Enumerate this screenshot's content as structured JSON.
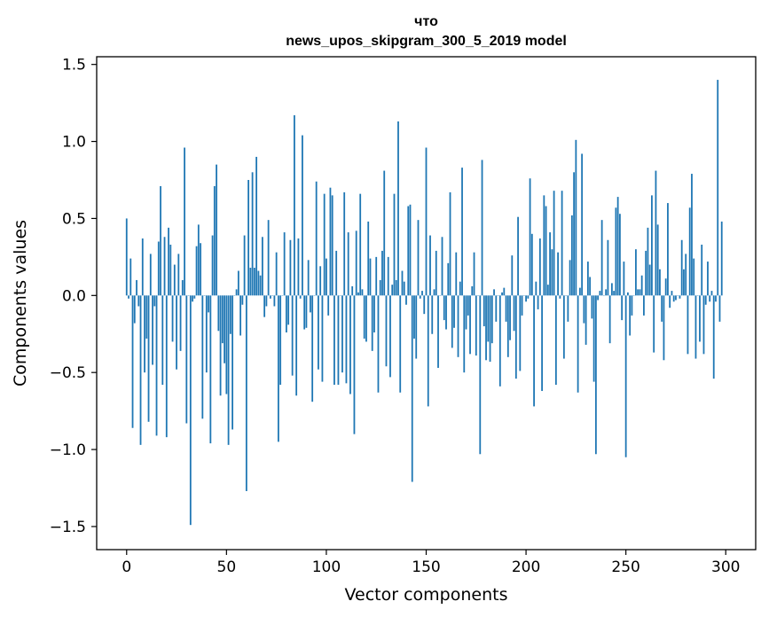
{
  "chart_data": {
    "type": "bar",
    "title_lines": [
      "что",
      "news_upos_skipgram_300_5_2019 model"
    ],
    "xlabel": "Vector components",
    "ylabel": "Components values",
    "xlim": [
      -15,
      315
    ],
    "ylim": [
      -1.65,
      1.55
    ],
    "xticks": [
      0,
      50,
      100,
      150,
      200,
      250,
      300
    ],
    "xtick_labels": [
      "0",
      "50",
      "100",
      "150",
      "200",
      "250",
      "300"
    ],
    "yticks": [
      -1.5,
      -1.0,
      -0.5,
      0.0,
      0.5,
      1.0,
      1.5
    ],
    "ytick_labels": [
      "−1.5",
      "−1.0",
      "−0.5",
      "0.0",
      "0.5",
      "1.0",
      "1.5"
    ],
    "bar_color": "#1f77b4",
    "grid": false,
    "values": [
      0.5,
      -0.02,
      0.24,
      -0.86,
      -0.18,
      0.1,
      -0.07,
      -0.97,
      0.37,
      -0.5,
      -0.28,
      -0.82,
      0.27,
      -0.45,
      -0.07,
      -0.91,
      0.35,
      0.71,
      -0.58,
      0.38,
      -0.92,
      0.44,
      0.33,
      -0.3,
      0.2,
      -0.48,
      0.27,
      -0.36,
      0.1,
      0.96,
      -0.83,
      0.0,
      -1.49,
      -0.04,
      -0.02,
      0.32,
      0.46,
      0.34,
      -0.8,
      0.0,
      -0.5,
      -0.11,
      -0.96,
      0.39,
      0.71,
      0.85,
      -0.23,
      -0.65,
      -0.31,
      -0.44,
      -0.64,
      -0.97,
      -0.25,
      -0.87,
      0.0,
      0.04,
      0.16,
      -0.26,
      -0.06,
      0.39,
      -1.27,
      0.75,
      0.18,
      0.8,
      0.18,
      0.9,
      0.16,
      0.13,
      0.38,
      -0.14,
      -0.07,
      0.49,
      -0.02,
      0.0,
      -0.07,
      0.28,
      -0.95,
      -0.58,
      0.0,
      0.41,
      -0.24,
      -0.19,
      0.36,
      -0.52,
      1.17,
      -0.65,
      0.37,
      -0.02,
      1.04,
      -0.22,
      -0.21,
      0.23,
      -0.11,
      -0.69,
      0.0,
      0.74,
      -0.48,
      0.19,
      -0.56,
      0.66,
      0.24,
      -0.13,
      0.7,
      0.65,
      -0.58,
      0.29,
      -0.58,
      0.0,
      -0.5,
      0.67,
      -0.57,
      0.41,
      -0.64,
      0.06,
      -0.9,
      0.42,
      0.02,
      0.66,
      0.04,
      -0.28,
      -0.3,
      0.48,
      0.24,
      -0.36,
      -0.24,
      0.25,
      -0.63,
      0.1,
      0.29,
      0.81,
      -0.46,
      0.25,
      -0.53,
      0.07,
      0.66,
      0.1,
      1.13,
      -0.63,
      0.16,
      0.09,
      -0.06,
      0.58,
      0.59,
      -1.21,
      -0.28,
      -0.41,
      0.49,
      -0.02,
      0.03,
      -0.12,
      0.96,
      -0.72,
      0.39,
      -0.25,
      0.04,
      0.29,
      -0.47,
      0.0,
      0.38,
      -0.16,
      -0.22,
      0.21,
      0.67,
      -0.34,
      -0.21,
      0.28,
      -0.4,
      0.09,
      0.83,
      -0.5,
      -0.22,
      -0.13,
      -0.38,
      0.06,
      0.28,
      -0.39,
      0.0,
      -1.03,
      0.88,
      -0.2,
      -0.42,
      -0.3,
      -0.43,
      -0.31,
      0.04,
      -0.17,
      0.0,
      -0.59,
      0.02,
      0.05,
      -0.17,
      -0.4,
      -0.29,
      0.26,
      -0.23,
      -0.54,
      0.51,
      -0.49,
      -0.13,
      0.0,
      -0.04,
      -0.02,
      0.76,
      0.4,
      -0.72,
      0.09,
      -0.09,
      0.37,
      -0.62,
      0.65,
      0.58,
      0.07,
      0.41,
      0.3,
      0.68,
      -0.58,
      0.28,
      -0.02,
      0.68,
      -0.41,
      0.0,
      -0.17,
      0.23,
      0.52,
      0.8,
      1.01,
      -0.63,
      0.05,
      0.92,
      -0.18,
      -0.32,
      0.22,
      0.12,
      -0.15,
      -0.56,
      -1.03,
      -0.03,
      0.03,
      0.49,
      0.0,
      0.04,
      0.36,
      -0.31,
      0.08,
      0.03,
      0.57,
      0.64,
      0.53,
      -0.16,
      0.22,
      -1.05,
      0.02,
      -0.26,
      -0.13,
      0.0,
      0.3,
      0.04,
      0.04,
      0.13,
      -0.13,
      0.29,
      0.44,
      0.2,
      0.65,
      -0.37,
      0.81,
      0.46,
      0.17,
      -0.17,
      -0.42,
      0.11,
      0.6,
      -0.08,
      0.03,
      -0.04,
      -0.03,
      0.0,
      -0.02,
      0.36,
      0.17,
      0.27,
      -0.38,
      0.57,
      0.79,
      0.24,
      -0.41,
      0.0,
      -0.3,
      0.33,
      -0.38,
      -0.06,
      0.22,
      -0.04,
      0.03,
      -0.54,
      -0.04,
      1.4,
      -0.17,
      0.48
    ]
  }
}
